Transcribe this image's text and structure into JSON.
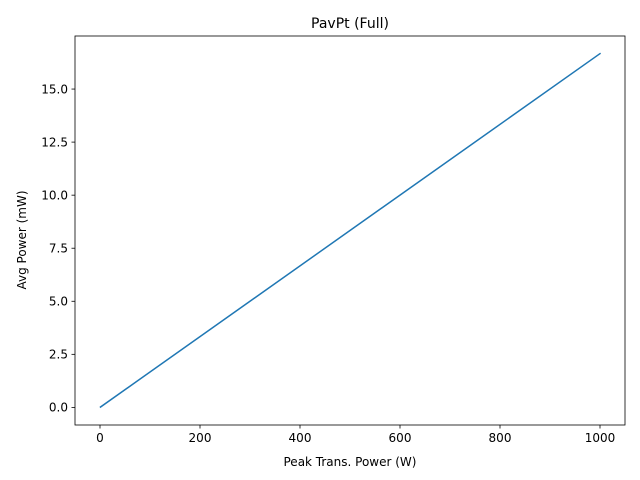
{
  "chart_data": {
    "type": "line",
    "title": "PavPt (Full)",
    "xlabel": "Peak Trans. Power (W)",
    "ylabel": "Avg Power (mW)",
    "xlim": [
      -50,
      1050
    ],
    "ylim": [
      -0.83,
      17.5
    ],
    "xticks": [
      0,
      200,
      400,
      600,
      800,
      1000
    ],
    "xtick_labels": [
      "0",
      "200",
      "400",
      "600",
      "800",
      "1000"
    ],
    "yticks": [
      0,
      2.5,
      5,
      7.5,
      10,
      12.5,
      15
    ],
    "ytick_labels": [
      "0.0",
      "2.5",
      "5.0",
      "7.5",
      "10.0",
      "12.5",
      "15.0"
    ],
    "grid": false,
    "series": [
      {
        "name": "PavPt",
        "color": "#1f77b4",
        "x": [
          1,
          1000
        ],
        "y": [
          0.0167,
          16.67
        ]
      }
    ]
  }
}
